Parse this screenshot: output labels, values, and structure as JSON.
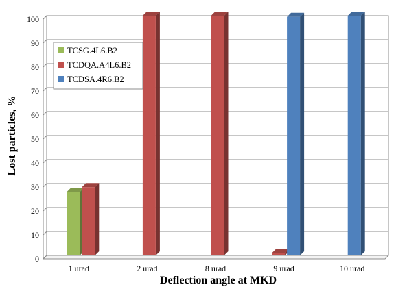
{
  "chart_data": {
    "type": "bar",
    "style": "3d-clustered",
    "categories": [
      "1 urad",
      "2 urad",
      "8 urad",
      "9 urad",
      "10 urad"
    ],
    "series": [
      {
        "name": "TCSG.4L6.B2",
        "color": "#9BBB59",
        "values": [
          26.5,
          0,
          0,
          0,
          0
        ]
      },
      {
        "name": "TCDQA.A4L6.B2",
        "color": "#C0504D",
        "values": [
          28.5,
          100,
          100,
          1,
          0
        ]
      },
      {
        "name": "TCDSA.4R6.B2",
        "color": "#4F81BD",
        "values": [
          0,
          0,
          0,
          99.5,
          100
        ]
      }
    ],
    "xlabel": "Deflection angle at MKD",
    "ylabel": "Lost particles, %",
    "ylim": [
      0,
      100
    ],
    "yticks": [
      0,
      10,
      20,
      30,
      40,
      50,
      60,
      70,
      80,
      90,
      100
    ],
    "grid": true,
    "legend": "top-left"
  }
}
